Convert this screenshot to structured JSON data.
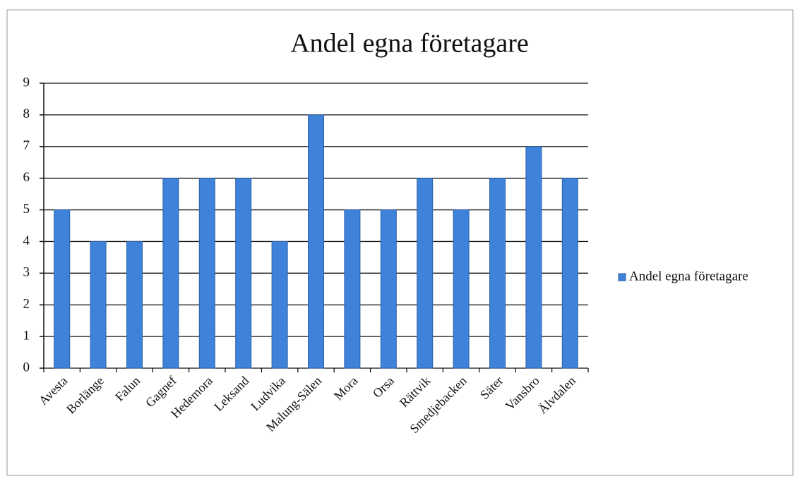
{
  "chart_data": {
    "type": "bar",
    "title": "Andel egna företagare",
    "categories": [
      "Avesta",
      "Borlänge",
      "Falun",
      "Gagnef",
      "Hedemora",
      "Leksand",
      "Ludvika",
      "Malung-Sälen",
      "Mora",
      "Orsa",
      "Rättvik",
      "Smedjebacken",
      "Säter",
      "Vansbro",
      "Älvdalen"
    ],
    "series": [
      {
        "name": "Andel egna företagare",
        "color": "#3f82d9",
        "values": [
          5,
          4,
          4,
          6,
          6,
          6,
          4,
          8,
          5,
          5,
          6,
          5,
          6,
          7,
          6
        ]
      }
    ],
    "ylim": [
      0,
      9
    ],
    "yticks": [
      0,
      1,
      2,
      3,
      4,
      5,
      6,
      7,
      8,
      9
    ],
    "grid": true,
    "legend": "right"
  }
}
